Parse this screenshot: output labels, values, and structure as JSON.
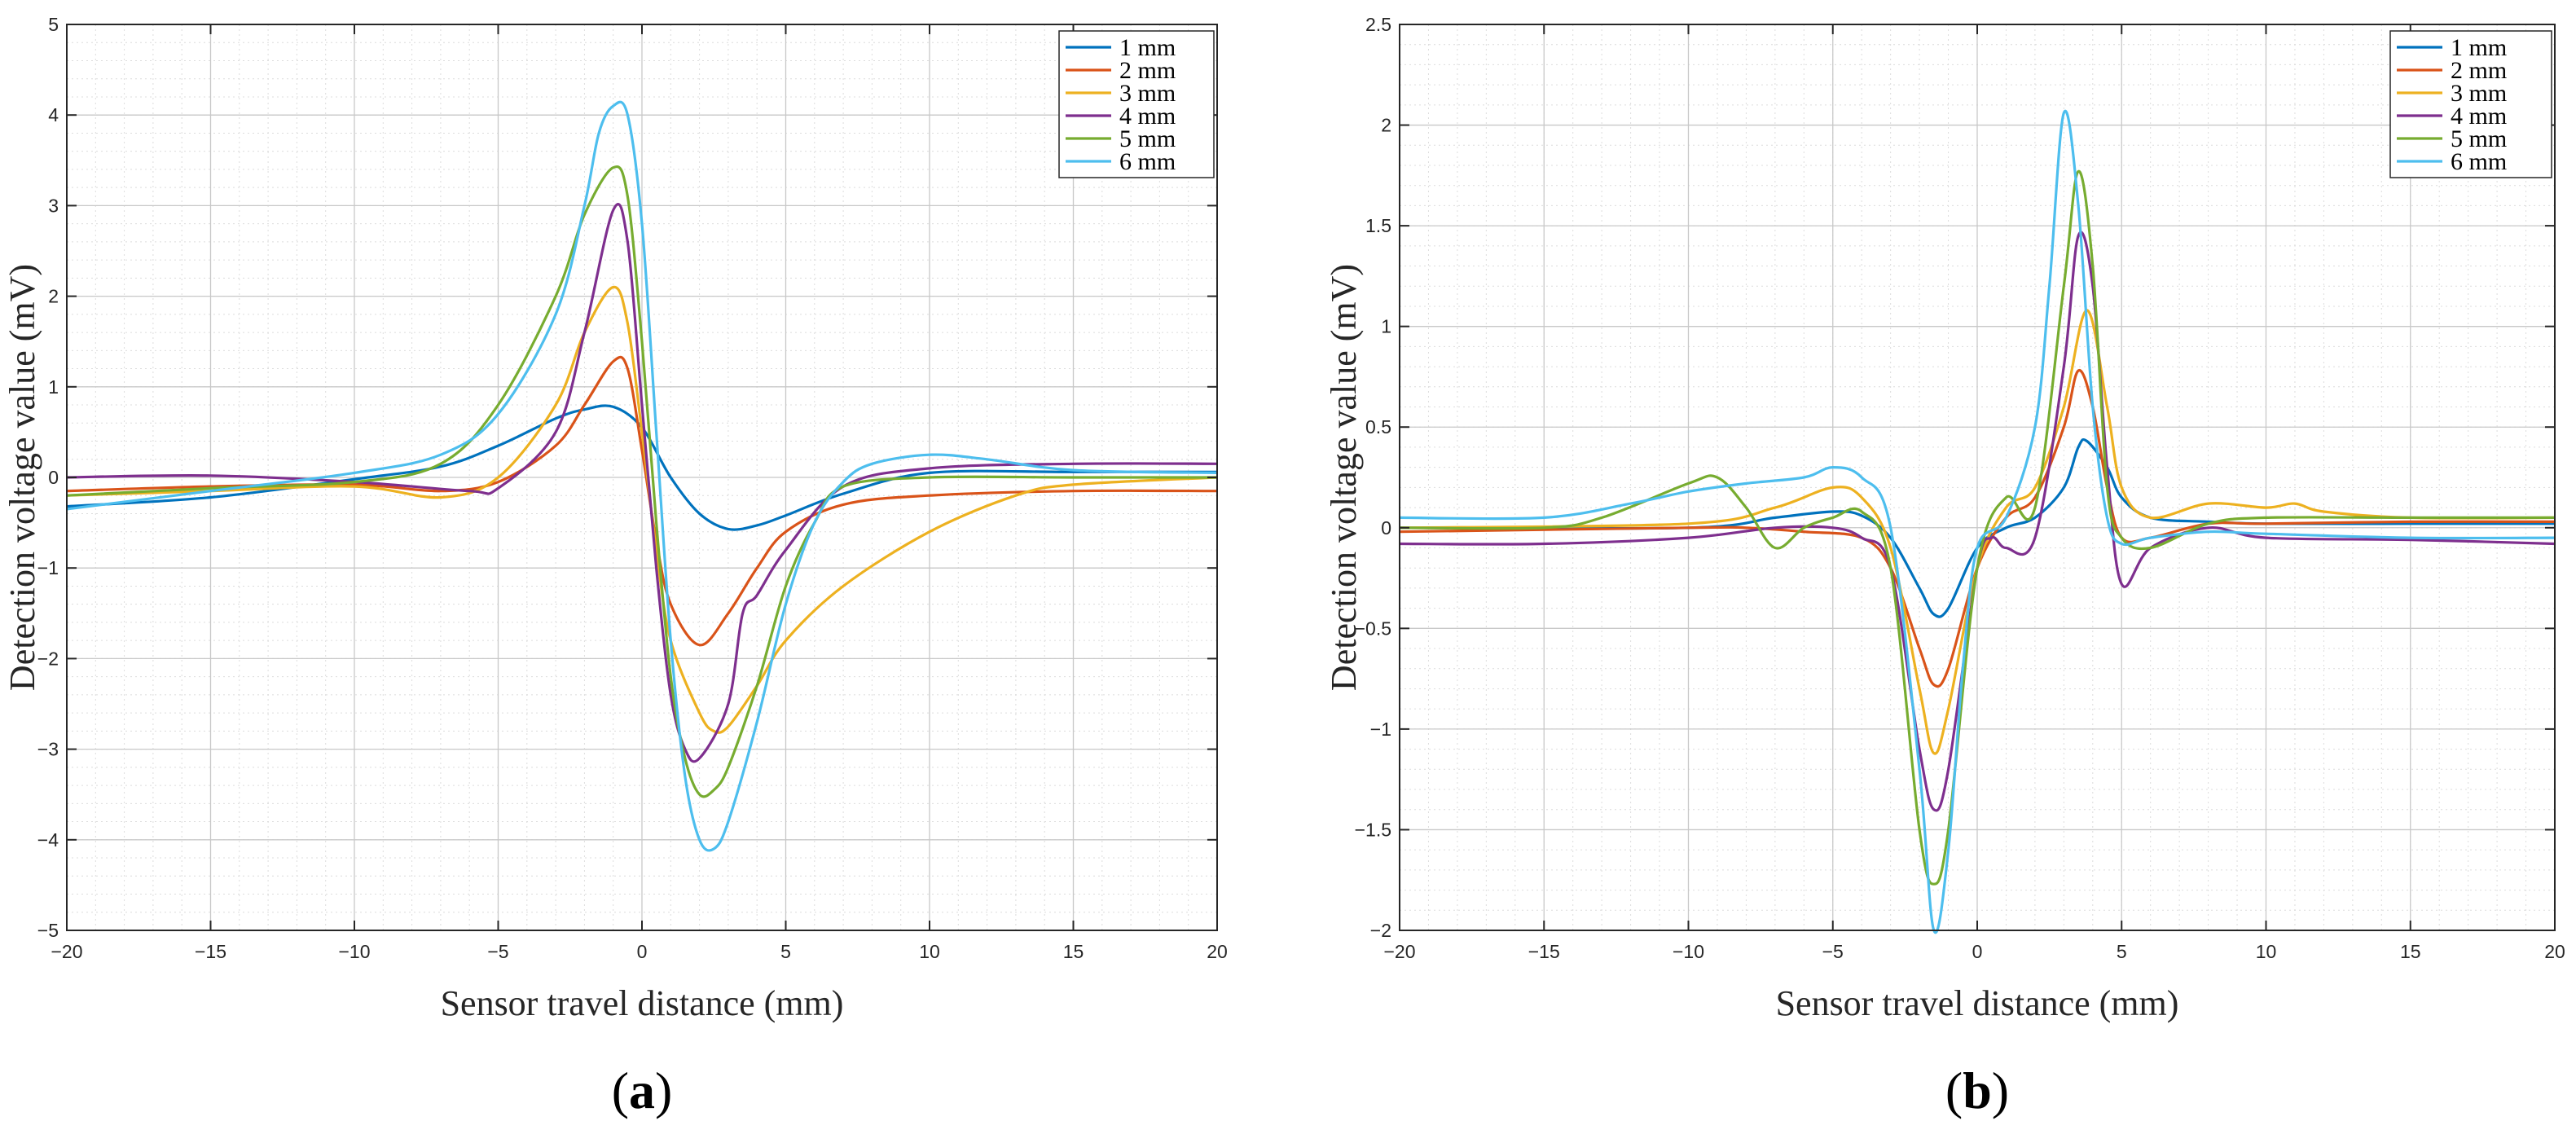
{
  "figure": {
    "panel_a_label": "a",
    "panel_b_label": "b"
  },
  "chart_data": [
    {
      "type": "line",
      "panel": "a",
      "xlabel": "Sensor travel distance (mm)",
      "ylabel": "Detection voltage value (mV)",
      "xlim": [
        -20,
        20
      ],
      "ylim": [
        -5,
        5
      ],
      "xticks": [
        -20,
        -15,
        -10,
        -5,
        0,
        5,
        10,
        15,
        20
      ],
      "yticks": [
        -5,
        -4,
        -3,
        -2,
        -1,
        0,
        1,
        2,
        3,
        4,
        5
      ],
      "grid": true,
      "legend_position": "top-right",
      "series": [
        {
          "name": "1 mm",
          "color": "#0072BD",
          "x": [
            -20,
            -15,
            -10,
            -7,
            -5,
            -3,
            -2,
            -1,
            0,
            1,
            2,
            3,
            4,
            5,
            7,
            10,
            15,
            20
          ],
          "y": [
            -0.32,
            -0.22,
            -0.02,
            0.12,
            0.35,
            0.65,
            0.75,
            0.78,
            0.55,
            0.0,
            -0.4,
            -0.57,
            -0.53,
            -0.42,
            -0.18,
            0.05,
            0.06,
            0.06
          ]
        },
        {
          "name": "2 mm",
          "color": "#D95319",
          "x": [
            -20,
            -15,
            -10,
            -7,
            -5,
            -3,
            -2,
            -1,
            -0.5,
            0,
            0.5,
            1,
            2,
            3,
            4,
            5,
            7,
            10,
            15,
            20
          ],
          "y": [
            -0.15,
            -0.1,
            -0.08,
            -0.15,
            -0.05,
            0.35,
            0.8,
            1.28,
            1.2,
            0.3,
            -0.7,
            -1.4,
            -1.85,
            -1.5,
            -1.0,
            -0.6,
            -0.3,
            -0.2,
            -0.15,
            -0.15
          ]
        },
        {
          "name": "3 mm",
          "color": "#EDB120",
          "x": [
            -20,
            -15,
            -10,
            -7,
            -5,
            -3,
            -2,
            -1,
            -0.5,
            0,
            0.5,
            1,
            2,
            2.5,
            3,
            4,
            5,
            7,
            10,
            13,
            15,
            20
          ],
          "y": [
            -0.2,
            -0.15,
            -0.1,
            -0.22,
            0.0,
            0.8,
            1.6,
            2.1,
            1.7,
            0.5,
            -0.8,
            -1.8,
            -2.6,
            -2.8,
            -2.75,
            -2.3,
            -1.8,
            -1.2,
            -0.6,
            -0.2,
            -0.08,
            0.0
          ]
        },
        {
          "name": "4 mm",
          "color": "#7E2F8E",
          "x": [
            -20,
            -15,
            -10,
            -6,
            -5,
            -3,
            -2,
            -1,
            -0.5,
            0,
            0.5,
            1,
            1.5,
            2,
            3,
            3.5,
            4,
            5,
            7,
            10,
            15,
            20
          ],
          "y": [
            0.0,
            0.02,
            -0.05,
            -0.15,
            -0.12,
            0.5,
            1.6,
            2.95,
            2.6,
            0.8,
            -1.0,
            -2.4,
            -3.0,
            -3.1,
            -2.5,
            -1.5,
            -1.3,
            -0.8,
            -0.1,
            0.1,
            0.15,
            0.15
          ]
        },
        {
          "name": "5 mm",
          "color": "#77AC30",
          "x": [
            -20,
            -15,
            -10,
            -7,
            -5,
            -3,
            -2,
            -1,
            -0.5,
            0,
            0.5,
            1,
            1.5,
            2,
            2.5,
            3,
            4,
            5,
            6,
            7,
            10,
            15,
            20
          ],
          "y": [
            -0.2,
            -0.12,
            -0.05,
            0.15,
            0.8,
            2.0,
            2.9,
            3.42,
            3.1,
            1.5,
            -0.5,
            -2.2,
            -3.1,
            -3.5,
            -3.45,
            -3.2,
            -2.3,
            -1.2,
            -0.5,
            -0.1,
            0.0,
            0.0,
            0.0
          ]
        },
        {
          "name": "6 mm",
          "color": "#4DBEEE",
          "x": [
            -20,
            -15,
            -10,
            -7,
            -5,
            -3,
            -2,
            -1.5,
            -1,
            -0.5,
            0,
            0.5,
            1,
            1.5,
            2,
            2.5,
            3,
            4,
            5,
            6,
            7,
            8,
            10,
            12,
            15,
            20
          ],
          "y": [
            -0.35,
            -0.15,
            0.05,
            0.25,
            0.7,
            1.8,
            3.0,
            3.8,
            4.1,
            4.0,
            2.8,
            0.5,
            -1.8,
            -3.3,
            -4.0,
            -4.1,
            -3.8,
            -2.7,
            -1.4,
            -0.5,
            -0.05,
            0.15,
            0.25,
            0.2,
            0.08,
            0.05
          ]
        }
      ]
    },
    {
      "type": "line",
      "panel": "b",
      "xlabel": "Sensor travel distance (mm)",
      "ylabel": "Detection voltage value (mV)",
      "xlim": [
        -20,
        20
      ],
      "ylim": [
        -2,
        2.5
      ],
      "xticks": [
        -20,
        -15,
        -10,
        -5,
        0,
        5,
        10,
        15,
        20
      ],
      "yticks": [
        -2,
        -1.5,
        -1,
        -0.5,
        0,
        0.5,
        1,
        1.5,
        2,
        2.5
      ],
      "ytick_labels": [
        "-2",
        "-1.5",
        "-1",
        "-0.5",
        "0",
        "0.5",
        "1",
        "1.5",
        "2",
        "2.5"
      ],
      "grid": true,
      "legend_position": "top-right",
      "series": [
        {
          "name": "1 mm",
          "color": "#0072BD",
          "x": [
            -20,
            -10,
            -7,
            -5,
            -4,
            -3,
            -2,
            -1.5,
            -1,
            0,
            1,
            2,
            3,
            3.5,
            3.8,
            4.5,
            5,
            6,
            8,
            10,
            15,
            20
          ],
          "y": [
            0.0,
            0.0,
            0.05,
            0.08,
            0.06,
            -0.05,
            -0.3,
            -0.43,
            -0.4,
            -0.1,
            0.0,
            0.05,
            0.2,
            0.4,
            0.43,
            0.3,
            0.15,
            0.05,
            0.03,
            0.02,
            0.02,
            0.02
          ]
        },
        {
          "name": "2 mm",
          "color": "#D95319",
          "x": [
            -20,
            -10,
            -8,
            -6,
            -4,
            -3,
            -2,
            -1.5,
            -1,
            0,
            1,
            2,
            3,
            3.5,
            4,
            4.5,
            5,
            6,
            8,
            10,
            15,
            20
          ],
          "y": [
            -0.02,
            0.0,
            0.0,
            -0.02,
            -0.05,
            -0.2,
            -0.6,
            -0.78,
            -0.7,
            -0.2,
            0.05,
            0.15,
            0.5,
            0.78,
            0.6,
            0.2,
            -0.05,
            -0.05,
            0.02,
            0.02,
            0.03,
            0.03
          ]
        },
        {
          "name": "3 mm",
          "color": "#EDB120",
          "x": [
            -20,
            -10,
            -7,
            -5,
            -4,
            -3,
            -2,
            -1.5,
            -1,
            0,
            1,
            2,
            3,
            3.8,
            4.5,
            5,
            6,
            8,
            10,
            11,
            12,
            15,
            20
          ],
          "y": [
            0.0,
            0.02,
            0.1,
            0.2,
            0.15,
            -0.1,
            -0.8,
            -1.12,
            -0.9,
            -0.2,
            0.1,
            0.2,
            0.6,
            1.08,
            0.6,
            0.2,
            0.05,
            0.12,
            0.1,
            0.12,
            0.08,
            0.05,
            0.05
          ]
        },
        {
          "name": "4 mm",
          "color": "#7E2F8E",
          "x": [
            -20,
            -15,
            -10,
            -7,
            -5,
            -4,
            -3,
            -2,
            -1.5,
            -1,
            0,
            0.5,
            1,
            2,
            3,
            3.5,
            4,
            4.5,
            5,
            6,
            8,
            10,
            15,
            20
          ],
          "y": [
            -0.08,
            -0.08,
            -0.05,
            0.0,
            0.0,
            -0.05,
            -0.2,
            -1.1,
            -1.4,
            -1.2,
            -0.2,
            -0.05,
            -0.1,
            -0.05,
            0.8,
            1.45,
            1.2,
            0.3,
            -0.28,
            -0.1,
            0.0,
            -0.05,
            -0.06,
            -0.08
          ]
        },
        {
          "name": "5 mm",
          "color": "#77AC30",
          "x": [
            -20,
            -15,
            -13,
            -10,
            -9,
            -8,
            -7,
            -6,
            -5,
            -4,
            -3,
            -2,
            -1.5,
            -1,
            0,
            1,
            2,
            3,
            3.5,
            4,
            4.5,
            5,
            6,
            8,
            10,
            15,
            20
          ],
          "y": [
            0.0,
            0.0,
            0.05,
            0.22,
            0.25,
            0.1,
            -0.1,
            0.0,
            0.05,
            0.08,
            -0.2,
            -1.5,
            -1.77,
            -1.5,
            -0.2,
            0.15,
            0.1,
            1.2,
            1.77,
            1.3,
            0.2,
            -0.05,
            -0.1,
            0.02,
            0.05,
            0.05,
            0.05
          ]
        },
        {
          "name": "6 mm",
          "color": "#4DBEEE",
          "x": [
            -20,
            -15,
            -12,
            -10,
            -8,
            -6,
            -5,
            -4,
            -3,
            -2,
            -1.5,
            -1,
            -0.5,
            0,
            1,
            2,
            2.5,
            3,
            3.5,
            4,
            4.5,
            5,
            6,
            8,
            10,
            15,
            20
          ],
          "y": [
            0.05,
            0.05,
            0.12,
            0.18,
            0.22,
            0.25,
            0.3,
            0.25,
            0.0,
            -1.2,
            -2.0,
            -1.6,
            -0.7,
            -0.1,
            0.05,
            0.5,
            1.2,
            2.06,
            1.6,
            0.6,
            0.05,
            -0.08,
            -0.05,
            -0.02,
            -0.03,
            -0.05,
            -0.05
          ]
        }
      ]
    }
  ]
}
